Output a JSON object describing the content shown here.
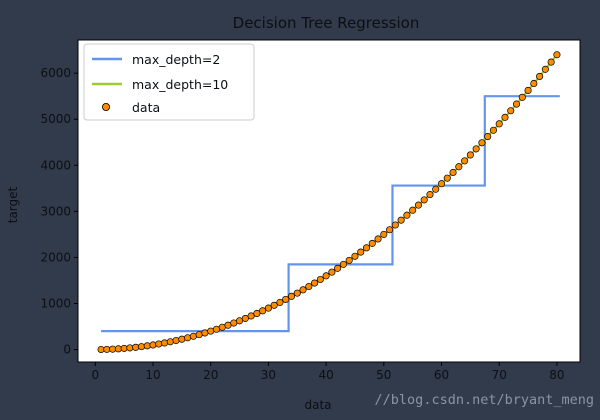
{
  "chart_data": {
    "type": "line",
    "title": "Decision Tree Regression",
    "xlabel": "data",
    "ylabel": "target",
    "xlim": [
      -3,
      84
    ],
    "ylim": [
      -270,
      6720
    ],
    "xticks": [
      0,
      10,
      20,
      30,
      40,
      50,
      60,
      70,
      80
    ],
    "yticks": [
      0,
      1000,
      2000,
      3000,
      4000,
      5000,
      6000
    ],
    "grid": false,
    "legend_position": "top-left",
    "series": [
      {
        "name": "max_depth=2",
        "kind": "line",
        "color": "#6495ed",
        "points": [
          [
            1,
            400
          ],
          [
            33.5,
            400
          ],
          [
            33.5,
            1850
          ],
          [
            51.5,
            1850
          ],
          [
            51.5,
            3560
          ],
          [
            67.5,
            3560
          ],
          [
            67.5,
            5500
          ],
          [
            80.5,
            5500
          ]
        ]
      },
      {
        "name": "max_depth=10",
        "kind": "line",
        "color": "#9acd32",
        "function": "y = x^2",
        "x_range": [
          1,
          80
        ]
      },
      {
        "name": "data",
        "kind": "scatter",
        "color": "#ff8c00",
        "edgecolor": "#000000",
        "function": "y = x^2",
        "x_range": [
          1,
          80
        ],
        "x_step": 1
      }
    ]
  },
  "watermark": "//blog.csdn.net/bryant_meng"
}
